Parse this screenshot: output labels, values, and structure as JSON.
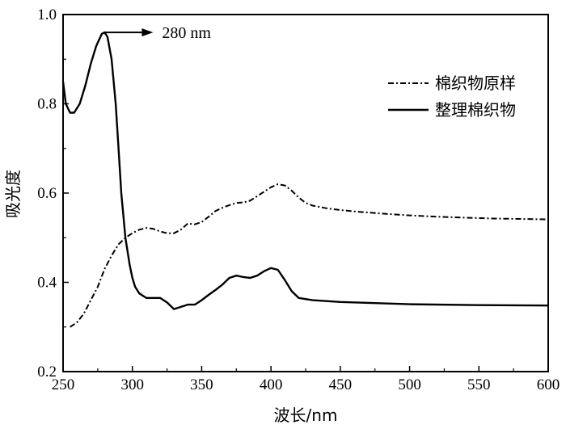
{
  "chart_data": {
    "type": "line",
    "title": "",
    "xlabel": "波长/nm",
    "ylabel": "吸光度",
    "xlim": [
      250,
      600
    ],
    "ylim": [
      0.2,
      1.0
    ],
    "xticks": [
      "250",
      "300",
      "350",
      "400",
      "450",
      "500",
      "550",
      "600"
    ],
    "yticks": [
      "0.2",
      "0.4",
      "0.6",
      "0.8",
      "1.0"
    ],
    "grid": false,
    "legend_position": "top-right",
    "annotation": {
      "text": "280 nm",
      "x": 280,
      "y": 0.96
    },
    "series": [
      {
        "name": "棉织物原样",
        "style": "dash-dot",
        "color": "#000000",
        "x": [
          255,
          260,
          265,
          270,
          275,
          280,
          285,
          290,
          295,
          300,
          305,
          310,
          315,
          320,
          325,
          330,
          335,
          340,
          345,
          350,
          355,
          360,
          365,
          370,
          375,
          380,
          385,
          390,
          395,
          400,
          405,
          410,
          415,
          420,
          425,
          430,
          440,
          450,
          460,
          480,
          500,
          520,
          540,
          560,
          580,
          600
        ],
        "y": [
          0.3,
          0.31,
          0.33,
          0.36,
          0.39,
          0.43,
          0.46,
          0.485,
          0.5,
          0.51,
          0.518,
          0.522,
          0.52,
          0.514,
          0.51,
          0.51,
          0.518,
          0.532,
          0.53,
          0.535,
          0.547,
          0.56,
          0.567,
          0.573,
          0.578,
          0.579,
          0.583,
          0.593,
          0.603,
          0.613,
          0.62,
          0.617,
          0.605,
          0.59,
          0.578,
          0.572,
          0.566,
          0.562,
          0.559,
          0.554,
          0.55,
          0.547,
          0.545,
          0.543,
          0.542,
          0.541
        ]
      },
      {
        "name": "整理棉织物",
        "style": "solid",
        "color": "#000000",
        "x": [
          250,
          252,
          255,
          258,
          262,
          266,
          270,
          274,
          278,
          280,
          282,
          285,
          288,
          290,
          292,
          295,
          298,
          300,
          302,
          305,
          310,
          315,
          320,
          325,
          330,
          335,
          340,
          345,
          350,
          355,
          360,
          365,
          370,
          375,
          380,
          385,
          390,
          395,
          400,
          405,
          410,
          415,
          420,
          430,
          450,
          500,
          550,
          600
        ],
        "y": [
          0.85,
          0.8,
          0.78,
          0.78,
          0.8,
          0.84,
          0.89,
          0.93,
          0.957,
          0.96,
          0.95,
          0.9,
          0.8,
          0.7,
          0.6,
          0.5,
          0.44,
          0.41,
          0.39,
          0.375,
          0.365,
          0.365,
          0.365,
          0.355,
          0.34,
          0.345,
          0.35,
          0.35,
          0.36,
          0.372,
          0.383,
          0.395,
          0.41,
          0.415,
          0.412,
          0.41,
          0.415,
          0.425,
          0.432,
          0.428,
          0.405,
          0.38,
          0.365,
          0.36,
          0.356,
          0.351,
          0.349,
          0.348
        ]
      }
    ]
  }
}
